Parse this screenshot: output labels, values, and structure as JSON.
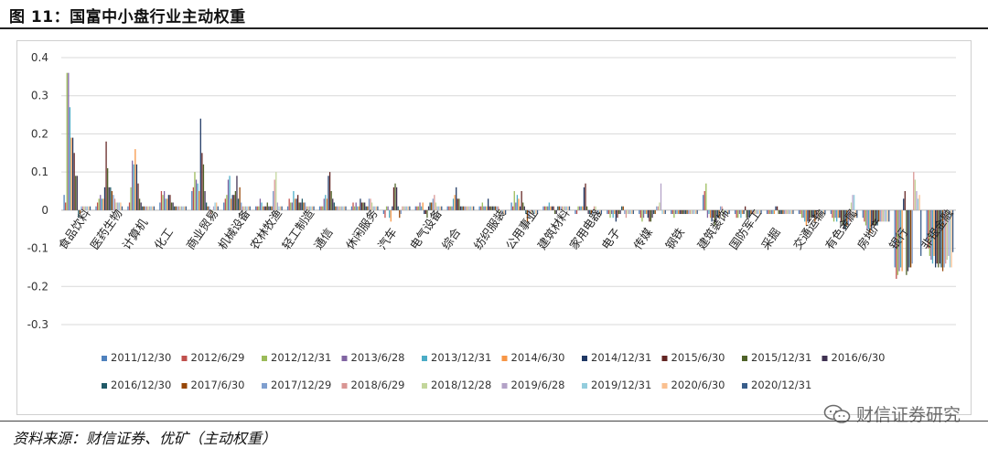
{
  "title": "图 11：国富中小盘行业主动权重",
  "source": "资料来源：财信证券、优矿（主动权重）",
  "watermark": "财信证券研究",
  "chart_data": {
    "type": "bar",
    "ylim": [
      -0.3,
      0.4
    ],
    "yticks": [
      "0.4",
      "0.3",
      "0.2",
      "0.1",
      "0",
      "-0.1",
      "-0.2",
      "-0.3"
    ],
    "grid": true,
    "legend_position": "bottom",
    "categories": [
      "食品饮料",
      "医药生物",
      "计算机",
      "化工",
      "商业贸易",
      "机械设备",
      "农林牧渔",
      "轻工制造",
      "通信",
      "休闲服务",
      "汽车",
      "电气设备",
      "综合",
      "纺织服装",
      "公用事业",
      "建筑材料",
      "家用电器",
      "电子",
      "传媒",
      "钢铁",
      "建筑装饰",
      "国防军工",
      "采掘",
      "交通运输",
      "有色金属",
      "房地产",
      "银行",
      "非银金融"
    ],
    "series_names": [
      "2011/12/30",
      "2012/6/29",
      "2012/12/31",
      "2013/6/28",
      "2013/12/31",
      "2014/6/30",
      "2014/12/31",
      "2015/6/30",
      "2015/12/31",
      "2016/6/30",
      "2016/12/30",
      "2017/6/30",
      "2017/12/29",
      "2018/6/29",
      "2018/12/28",
      "2019/6/28",
      "2019/12/31",
      "2020/6/30",
      "2020/12/31"
    ],
    "colors": [
      "#4f81bd",
      "#c0504d",
      "#9bbb59",
      "#8064a2",
      "#4bacc6",
      "#f79646",
      "#1f3864",
      "#632523",
      "#4f6228",
      "#3f3151",
      "#215967",
      "#974706",
      "#7f9fcf",
      "#d99694",
      "#c3d69b",
      "#b3a2c7",
      "#93cddd",
      "#fac090",
      "#385d8a"
    ],
    "values": [
      [
        0.04,
        0.02,
        0.36,
        0.36,
        0.27,
        0.19,
        0.19,
        0.15,
        0.09,
        0.09,
        -0.02,
        -0.01,
        0.01,
        0.01,
        0.01,
        0.01,
        0.01,
        0.01,
        0.01
      ],
      [
        0.01,
        0.02,
        0.03,
        0.04,
        0.03,
        0.03,
        0.06,
        0.18,
        0.11,
        0.06,
        0.06,
        0.05,
        0.04,
        0.03,
        0.02,
        0.02,
        0.02,
        0.02,
        0.01
      ],
      [
        0.01,
        0.02,
        0.06,
        0.13,
        0.12,
        0.16,
        0.12,
        0.07,
        0.03,
        0.02,
        0.01,
        0.01,
        0.01,
        0.01,
        0.01,
        0.01,
        0.01,
        0.01,
        0.01
      ],
      [
        0.02,
        0.05,
        0.04,
        0.05,
        0.03,
        0.03,
        0.04,
        0.04,
        0.02,
        0.02,
        0.01,
        0.01,
        0.01,
        0.01,
        0.01,
        0.01,
        0.01,
        0.01,
        0.01
      ],
      [
        0.05,
        0.06,
        0.1,
        0.08,
        0.07,
        0.05,
        0.24,
        0.15,
        0.12,
        0.05,
        0.02,
        0.01,
        0.01,
        -0.01,
        -0.01,
        0.01,
        0.02,
        0.02,
        0.01
      ],
      [
        0.02,
        0.03,
        0.04,
        0.08,
        0.09,
        0.03,
        0.04,
        0.04,
        0.05,
        0.09,
        0.03,
        0.06,
        0.02,
        0.01,
        0.01,
        0.01,
        0.01,
        0.01,
        0.01
      ],
      [
        0.01,
        0.01,
        0.01,
        0.03,
        0.02,
        0.01,
        0.01,
        0.01,
        0.02,
        0.01,
        0.01,
        0.01,
        0.05,
        0.08,
        0.1,
        0.02,
        0.01,
        0.01,
        0.01
      ],
      [
        0.01,
        0.03,
        0.02,
        0.02,
        0.05,
        0.03,
        0.03,
        0.04,
        0.02,
        0.02,
        0.03,
        0.02,
        0.02,
        0.01,
        0.01,
        0.01,
        0.01,
        0.01,
        0.01
      ],
      [
        0.01,
        0.01,
        0.01,
        0.03,
        0.04,
        0.03,
        0.09,
        0.1,
        0.05,
        0.03,
        0.02,
        0.01,
        0.01,
        0.01,
        0.01,
        0.01,
        0.01,
        0.01,
        0.01
      ],
      [
        0.01,
        0.02,
        0.01,
        0.02,
        0.01,
        0.01,
        0.03,
        0.02,
        0.02,
        0.02,
        0.01,
        0.01,
        0.03,
        0.03,
        0.02,
        0.01,
        0.01,
        0.01,
        0.01
      ],
      [
        -0.01,
        -0.02,
        0.01,
        0.01,
        -0.02,
        -0.03,
        0.01,
        0.06,
        0.07,
        0.06,
        0.01,
        -0.02,
        -0.01,
        0.01,
        0.01,
        0.01,
        0.01,
        0.01,
        0.01
      ],
      [
        0.01,
        0.01,
        0.01,
        0.02,
        0.01,
        0.02,
        -0.01,
        -0.01,
        -0.02,
        0.01,
        0.02,
        0.02,
        0.03,
        0.04,
        0.02,
        0.01,
        0.01,
        0.01,
        0.01
      ],
      [
        0.01,
        0.01,
        0.01,
        0.01,
        0.03,
        0.04,
        0.06,
        0.03,
        0.03,
        0.01,
        0.01,
        0.01,
        0.01,
        0.01,
        0.01,
        0.01,
        0.01,
        0.01,
        0.01
      ],
      [
        0.01,
        0.01,
        0.02,
        0.01,
        0.01,
        0.01,
        0.03,
        0.01,
        0.01,
        0.01,
        0.01,
        0.01,
        0.01,
        0.01,
        -0.01,
        -0.01,
        -0.01,
        -0.01,
        -0.01
      ],
      [
        0.02,
        0.01,
        0.05,
        0.02,
        0.04,
        0.03,
        0.01,
        0.05,
        0.02,
        0.01,
        -0.01,
        -0.03,
        -0.02,
        -0.01,
        -0.01,
        -0.01,
        -0.01,
        -0.01,
        -0.01
      ],
      [
        0.01,
        0.01,
        0.01,
        0.01,
        0.02,
        0.01,
        0.01,
        0.01,
        -0.01,
        -0.01,
        0.01,
        0.01,
        0.01,
        0.01,
        0.01,
        0.01,
        0.01,
        0.01,
        0.01
      ],
      [
        -0.01,
        -0.01,
        0.01,
        0.01,
        0.01,
        0.01,
        0.06,
        0.07,
        0.01,
        -0.01,
        -0.01,
        -0.01,
        -0.01,
        0.01,
        0.01,
        -0.01,
        -0.01,
        -0.01,
        -0.01
      ],
      [
        -0.01,
        -0.01,
        -0.02,
        -0.01,
        -0.02,
        -0.01,
        -0.03,
        -0.02,
        -0.01,
        -0.01,
        0.01,
        0.01,
        -0.01,
        -0.02,
        -0.01,
        -0.01,
        -0.01,
        -0.01,
        -0.01
      ],
      [
        -0.01,
        -0.02,
        -0.03,
        -0.02,
        -0.01,
        -0.01,
        -0.02,
        -0.03,
        -0.03,
        -0.02,
        -0.01,
        -0.01,
        0.01,
        0.01,
        0.02,
        0.07,
        -0.01,
        -0.01,
        -0.01
      ],
      [
        -0.01,
        -0.01,
        -0.02,
        -0.01,
        -0.01,
        -0.01,
        -0.01,
        -0.01,
        -0.01,
        -0.01,
        -0.01,
        -0.01,
        -0.01,
        -0.01,
        -0.01,
        -0.01,
        -0.01,
        -0.01,
        -0.01
      ],
      [
        0.04,
        0.05,
        0.07,
        -0.02,
        -0.01,
        -0.02,
        -0.03,
        -0.02,
        -0.04,
        -0.03,
        -0.02,
        -0.02,
        0.01,
        0.01,
        -0.02,
        -0.02,
        -0.01,
        -0.01,
        -0.01
      ],
      [
        -0.01,
        -0.02,
        -0.02,
        -0.01,
        -0.02,
        -0.01,
        -0.01,
        0.01,
        -0.02,
        -0.02,
        -0.02,
        -0.01,
        -0.01,
        -0.01,
        -0.01,
        -0.01,
        -0.01,
        -0.01,
        -0.01
      ],
      [
        -0.01,
        -0.01,
        -0.01,
        -0.01,
        -0.01,
        -0.01,
        0.01,
        0.01,
        -0.01,
        -0.01,
        -0.01,
        -0.01,
        -0.01,
        -0.01,
        -0.01,
        -0.01,
        -0.01,
        -0.01,
        -0.01
      ],
      [
        -0.01,
        -0.01,
        -0.02,
        -0.02,
        -0.03,
        -0.04,
        -0.03,
        -0.03,
        -0.02,
        -0.02,
        -0.02,
        -0.03,
        -0.02,
        -0.02,
        -0.02,
        -0.01,
        -0.01,
        -0.01,
        -0.01
      ],
      [
        -0.01,
        -0.02,
        -0.03,
        -0.02,
        -0.03,
        -0.02,
        -0.02,
        -0.03,
        -0.04,
        -0.05,
        -0.05,
        -0.04,
        -0.04,
        -0.03,
        0.02,
        0.04,
        0.04,
        -0.02,
        -0.02
      ],
      [
        -0.02,
        -0.03,
        -0.04,
        -0.05,
        -0.05,
        -0.06,
        -0.05,
        -0.04,
        -0.04,
        -0.04,
        -0.04,
        -0.03,
        -0.03,
        -0.03,
        -0.03,
        -0.03,
        -0.03,
        -0.03,
        -0.03
      ],
      [
        -0.15,
        -0.18,
        -0.17,
        -0.16,
        -0.15,
        -0.16,
        0.03,
        0.05,
        -0.17,
        -0.16,
        -0.15,
        -0.15,
        -0.14,
        0.1,
        0.08,
        0.05,
        0.03,
        0.04,
        -0.12
      ],
      [
        -0.08,
        -0.1,
        -0.12,
        -0.13,
        -0.14,
        -0.12,
        -0.15,
        -0.14,
        -0.15,
        -0.14,
        -0.15,
        -0.16,
        -0.15,
        -0.14,
        -0.13,
        -0.12,
        -0.15,
        -0.15,
        -0.11
      ]
    ]
  }
}
